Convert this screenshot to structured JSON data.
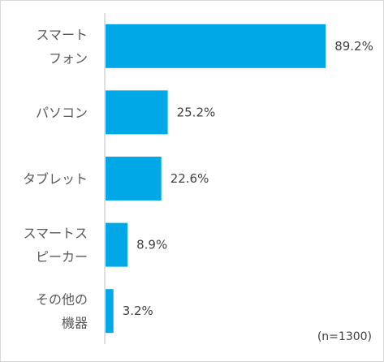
{
  "chart_data": {
    "type": "bar",
    "orientation": "horizontal",
    "categories": [
      [
        "スマート",
        "フォン"
      ],
      [
        "パソコン"
      ],
      [
        "タブレット"
      ],
      [
        "スマートス",
        "ピーカー"
      ],
      [
        "その他の",
        "機器"
      ]
    ],
    "values": [
      89.2,
      25.2,
      22.6,
      8.9,
      3.2
    ],
    "value_labels": [
      "89.2%",
      "25.2%",
      "22.6%",
      "8.9%",
      "3.2%"
    ],
    "xlim": [
      0,
      100
    ],
    "unit": "%",
    "grid": false,
    "legend": "none",
    "note": "(n=1300)",
    "bar_color": "#00a8e8",
    "axis_color": "#bfbfbf"
  }
}
